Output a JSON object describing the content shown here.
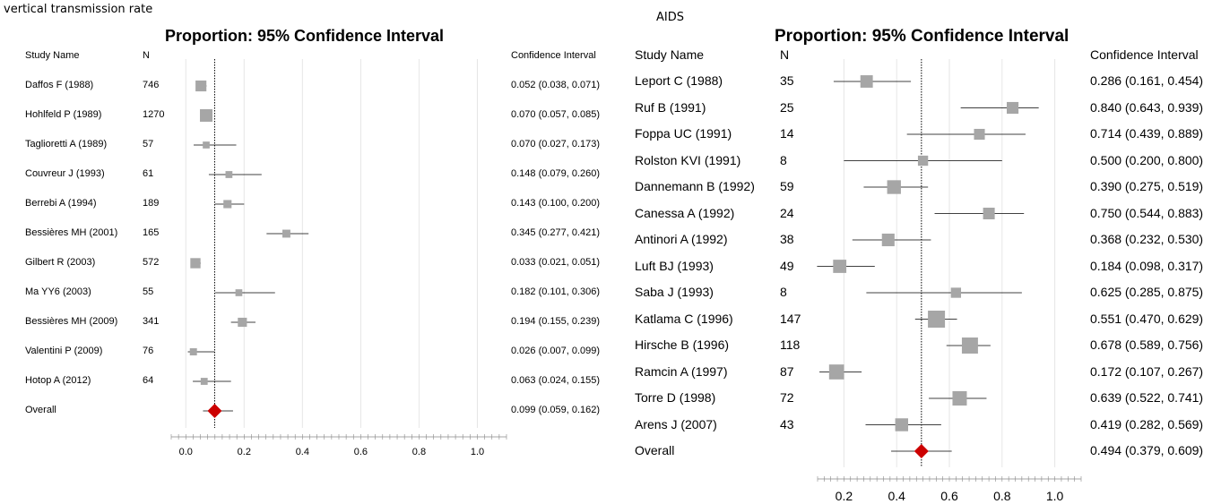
{
  "chart_data": [
    {
      "type": "forest",
      "panel_label": "vertical transmission rate",
      "title": "Proportion: 95% Confidence Interval",
      "columns": {
        "study": "Study Name",
        "n": "N",
        "ci": "Confidence Interval"
      },
      "xlim": [
        -0.05,
        1.1
      ],
      "ticks": [
        0.0,
        0.2,
        0.4,
        0.6,
        0.8,
        1.0
      ],
      "tick_labels": [
        "0.0",
        "0.2",
        "0.4",
        "0.6",
        "0.8",
        "1.0"
      ],
      "reference_line": 0.099,
      "studies": [
        {
          "name": "Daffos F  (1988)",
          "n": "746",
          "ci_text": "0.052 (0.038, 0.071)",
          "p": 0.052,
          "lo": 0.038,
          "hi": 0.071,
          "weight": 746
        },
        {
          "name": "Hohlfeld P  (1989)",
          "n": "1270",
          "ci_text": "0.070 (0.057, 0.085)",
          "p": 0.07,
          "lo": 0.057,
          "hi": 0.085,
          "weight": 1270
        },
        {
          "name": "Taglioretti A (1989)",
          "n": "57",
          "ci_text": "0.070 (0.027, 0.173)",
          "p": 0.07,
          "lo": 0.027,
          "hi": 0.173,
          "weight": 57
        },
        {
          "name": "Couvreur J (1993)",
          "n": "61",
          "ci_text": "0.148 (0.079, 0.260)",
          "p": 0.148,
          "lo": 0.079,
          "hi": 0.26,
          "weight": 61
        },
        {
          "name": "Berrebi A (1994)",
          "n": "189",
          "ci_text": "0.143 (0.100, 0.200)",
          "p": 0.143,
          "lo": 0.1,
          "hi": 0.2,
          "weight": 189
        },
        {
          "name": "Bessières MH  (2001)",
          "n": "165",
          "ci_text": "0.345 (0.277, 0.421)",
          "p": 0.345,
          "lo": 0.277,
          "hi": 0.421,
          "weight": 165
        },
        {
          "name": "Gilbert R (2003)",
          "n": "572",
          "ci_text": "0.033 (0.021, 0.051)",
          "p": 0.033,
          "lo": 0.021,
          "hi": 0.051,
          "weight": 572
        },
        {
          "name": "Ma YY6 (2003)",
          "n": "55",
          "ci_text": "0.182 (0.101, 0.306)",
          "p": 0.182,
          "lo": 0.101,
          "hi": 0.306,
          "weight": 55
        },
        {
          "name": "Bessières MH (2009)",
          "n": "341",
          "ci_text": "0.194 (0.155, 0.239)",
          "p": 0.194,
          "lo": 0.155,
          "hi": 0.239,
          "weight": 341
        },
        {
          "name": "Valentini P (2009)",
          "n": "76",
          "ci_text": "0.026 (0.007, 0.099)",
          "p": 0.026,
          "lo": 0.007,
          "hi": 0.099,
          "weight": 76
        },
        {
          "name": "Hotop A (2012)",
          "n": "64",
          "ci_text": "0.063 (0.024, 0.155)",
          "p": 0.063,
          "lo": 0.024,
          "hi": 0.155,
          "weight": 64
        }
      ],
      "overall": {
        "name": "Overall",
        "ci_text": "0.099 (0.059, 0.162)",
        "p": 0.099,
        "lo": 0.059,
        "hi": 0.162
      },
      "colors": {
        "box": "#a6a6a6",
        "diamond": "#cc0000",
        "line": "#000000",
        "grid": "#e6e6e6"
      }
    },
    {
      "type": "forest",
      "panel_label": "AIDS",
      "title": "Proportion: 95% Confidence Interval",
      "columns": {
        "study": "Study Name",
        "n": "N",
        "ci": "Confidence Interval"
      },
      "xlim": [
        0.1,
        1.1
      ],
      "ticks": [
        0.2,
        0.4,
        0.6,
        0.8,
        1.0
      ],
      "tick_labels": [
        "0.2",
        "0.4",
        "0.6",
        "0.8",
        "1.0"
      ],
      "reference_line": 0.494,
      "studies": [
        {
          "name": "Leport  C  (1988)",
          "n": "35",
          "ci_text": "0.286 (0.161, 0.454)",
          "p": 0.286,
          "lo": 0.161,
          "hi": 0.454,
          "weight": 35
        },
        {
          "name": "Ruf B  (1991)",
          "n": "25",
          "ci_text": "0.840 (0.643, 0.939)",
          "p": 0.84,
          "lo": 0.643,
          "hi": 0.939,
          "weight": 25
        },
        {
          "name": "Foppa UC  (1991)",
          "n": "14",
          "ci_text": "0.714 (0.439, 0.889)",
          "p": 0.714,
          "lo": 0.439,
          "hi": 0.889,
          "weight": 14
        },
        {
          "name": "Rolston KVI  (1991)",
          "n": "8",
          "ci_text": "0.500 (0.200, 0.800)",
          "p": 0.5,
          "lo": 0.2,
          "hi": 0.8,
          "weight": 8
        },
        {
          "name": "Dannemann B  (1992)",
          "n": "59",
          "ci_text": "0.390 (0.275, 0.519)",
          "p": 0.39,
          "lo": 0.275,
          "hi": 0.519,
          "weight": 59
        },
        {
          "name": "Canessa A (1992)",
          "n": "24",
          "ci_text": "0.750 (0.544, 0.883)",
          "p": 0.75,
          "lo": 0.544,
          "hi": 0.883,
          "weight": 24
        },
        {
          "name": "Antinori  A  (1992)",
          "n": "38",
          "ci_text": "0.368 (0.232, 0.530)",
          "p": 0.368,
          "lo": 0.232,
          "hi": 0.53,
          "weight": 38
        },
        {
          "name": "Luft BJ  (1993)",
          "n": "49",
          "ci_text": "0.184 (0.098, 0.317)",
          "p": 0.184,
          "lo": 0.098,
          "hi": 0.317,
          "weight": 49
        },
        {
          "name": "Saba J  (1993)",
          "n": "8",
          "ci_text": "0.625 (0.285, 0.875)",
          "p": 0.625,
          "lo": 0.285,
          "hi": 0.875,
          "weight": 8
        },
        {
          "name": "Katlama C  (1996)",
          "n": "147",
          "ci_text": "0.551 (0.470, 0.629)",
          "p": 0.551,
          "lo": 0.47,
          "hi": 0.629,
          "weight": 147
        },
        {
          "name": "Hirsche B  (1996)",
          "n": "118",
          "ci_text": "0.678 (0.589, 0.756)",
          "p": 0.678,
          "lo": 0.589,
          "hi": 0.756,
          "weight": 118
        },
        {
          "name": "Ramcin A  (1997)",
          "n": "87",
          "ci_text": "0.172 (0.107, 0.267)",
          "p": 0.172,
          "lo": 0.107,
          "hi": 0.267,
          "weight": 87
        },
        {
          "name": "Torre D  (1998)",
          "n": "72",
          "ci_text": "0.639 (0.522, 0.741)",
          "p": 0.639,
          "lo": 0.522,
          "hi": 0.741,
          "weight": 72
        },
        {
          "name": "Arens J  (2007)",
          "n": "43",
          "ci_text": "0.419 (0.282, 0.569)",
          "p": 0.419,
          "lo": 0.282,
          "hi": 0.569,
          "weight": 43
        }
      ],
      "overall": {
        "name": "Overall",
        "ci_text": "0.494 (0.379, 0.609)",
        "p": 0.494,
        "lo": 0.379,
        "hi": 0.609
      },
      "colors": {
        "box": "#a6a6a6",
        "diamond": "#cc0000",
        "line": "#000000",
        "grid": "#e6e6e6"
      }
    }
  ]
}
